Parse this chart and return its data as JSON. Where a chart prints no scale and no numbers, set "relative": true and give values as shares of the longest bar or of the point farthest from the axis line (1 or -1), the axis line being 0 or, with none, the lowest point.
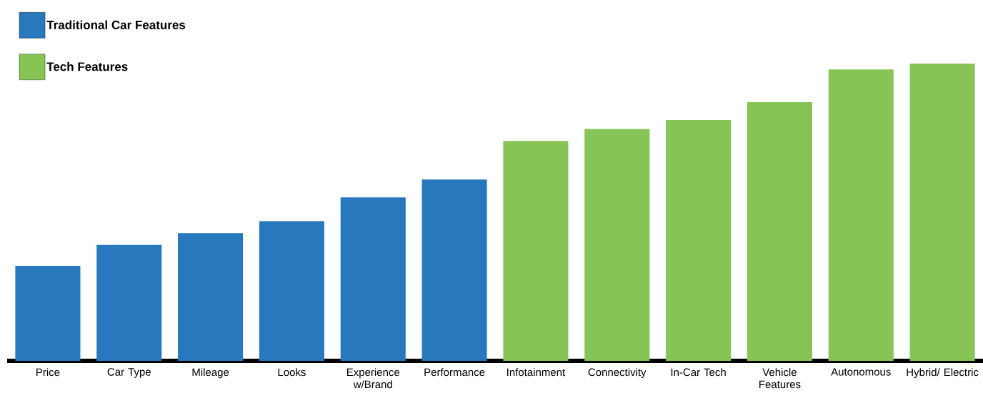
{
  "chart_data": {
    "type": "bar",
    "relative": true,
    "legend": "top left",
    "grid": false,
    "categories": [
      "Price",
      "Car Type",
      "Mileage",
      "Looks",
      "Experience w/Brand",
      "Performance",
      "Infotainment",
      "Connectivity",
      "In-Car Tech",
      "Vehicle Features",
      "Autonomous",
      "Hybrid/ Electric"
    ],
    "series": [
      {
        "name": "Traditional Car Features",
        "color": "#2878bd",
        "values": [
          0.32,
          0.39,
          0.43,
          0.47,
          0.55,
          0.61,
          null,
          null,
          null,
          null,
          null,
          null
        ]
      },
      {
        "name": "Tech Features",
        "color": "#86c455",
        "values": [
          null,
          null,
          null,
          null,
          null,
          null,
          0.74,
          0.78,
          0.81,
          0.87,
          0.98,
          1.0
        ]
      }
    ]
  }
}
